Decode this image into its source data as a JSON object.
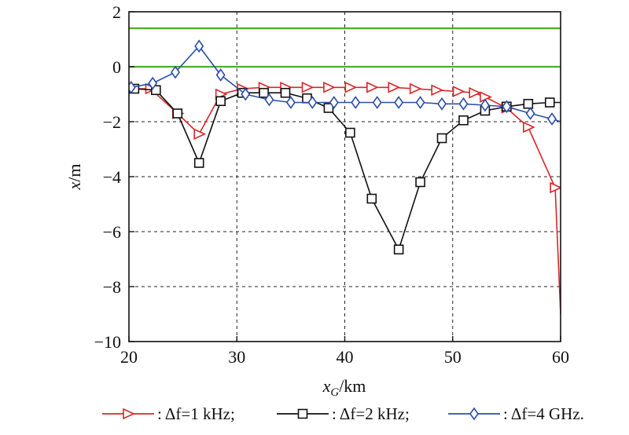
{
  "chart_data": {
    "type": "line",
    "title": "",
    "xlabel_main": "x",
    "xlabel_sub": "G",
    "xlabel_unit": "/km",
    "ylabel_main": "x",
    "ylabel_unit": "/m",
    "xlim": [
      20,
      60
    ],
    "ylim": [
      -10,
      2
    ],
    "xticks": [
      20,
      30,
      40,
      50,
      60
    ],
    "yticks": [
      -10,
      -8,
      -6,
      -4,
      -2,
      0,
      2
    ],
    "ytick_labels": [
      "−10",
      "−8",
      "−6",
      "−4",
      "−2",
      "0",
      "2"
    ],
    "xtick_labels": [
      "20",
      "30",
      "40",
      "50",
      "60"
    ],
    "grid": true,
    "reference_lines": [
      {
        "y": 1.4,
        "color": "#4caf2a"
      },
      {
        "y": 0.0,
        "color": "#4caf2a"
      }
    ],
    "series": [
      {
        "name": ": Δf=1 kHz;",
        "color": "#d9262a",
        "marker": "triangle-right",
        "x": [
          20,
          22,
          24.5,
          26.5,
          28.5,
          30.5,
          32.5,
          34.5,
          36.5,
          38.5,
          40.5,
          42.5,
          44.5,
          46.5,
          48.5,
          50.5,
          52,
          53,
          55,
          57,
          59.5,
          60
        ],
        "y": [
          -0.8,
          -0.8,
          -1.7,
          -2.45,
          -1.0,
          -0.8,
          -0.75,
          -0.75,
          -0.75,
          -0.75,
          -0.75,
          -0.75,
          -0.75,
          -0.8,
          -0.85,
          -0.9,
          -0.95,
          -1.1,
          -1.5,
          -2.2,
          -4.4,
          -9.0
        ],
        "marker_x": [
          20,
          22,
          24.5,
          26.5,
          28.5,
          30.5,
          32.5,
          34.5,
          36.5,
          38.5,
          40.5,
          42.5,
          44.5,
          46.5,
          48.5,
          50.5,
          52,
          53,
          55,
          57,
          59.5
        ]
      },
      {
        "name": ": Δf=2 kHz;",
        "color": "#111111",
        "marker": "square",
        "x": [
          20.5,
          22.5,
          24.5,
          26.5,
          28.5,
          30.5,
          32.5,
          34.5,
          36.5,
          38.5,
          40.5,
          42.5,
          45,
          47,
          49,
          51,
          53,
          55,
          57,
          59,
          60
        ],
        "y": [
          -0.8,
          -0.85,
          -1.7,
          -3.5,
          -1.25,
          -0.95,
          -0.95,
          -0.95,
          -1.15,
          -1.5,
          -2.4,
          -4.8,
          -6.65,
          -4.2,
          -2.6,
          -1.95,
          -1.6,
          -1.45,
          -1.35,
          -1.3,
          -1.3
        ],
        "marker_x": [
          20.5,
          22.5,
          24.5,
          26.5,
          28.5,
          30.5,
          32.5,
          34.5,
          36.5,
          38.5,
          40.5,
          42.5,
          45,
          47,
          49,
          51,
          53,
          55,
          57,
          59
        ]
      },
      {
        "name": ": Δf=4 GHz.",
        "color": "#2b4fa8",
        "marker": "diamond",
        "x": [
          20.2,
          22.2,
          24.3,
          26.5,
          28.5,
          30.8,
          33,
          35,
          37,
          39,
          41,
          43,
          45,
          47,
          49,
          51,
          53,
          55,
          57.2,
          59.2,
          60
        ],
        "y": [
          -0.75,
          -0.6,
          -0.2,
          0.75,
          -0.3,
          -1.0,
          -1.2,
          -1.3,
          -1.3,
          -1.3,
          -1.3,
          -1.3,
          -1.3,
          -1.3,
          -1.35,
          -1.35,
          -1.4,
          -1.45,
          -1.7,
          -1.9,
          -2.0
        ],
        "marker_x": [
          20.2,
          22.2,
          24.3,
          26.5,
          28.5,
          30.8,
          33,
          35,
          37,
          39,
          41,
          43,
          45,
          47,
          49,
          51,
          53,
          55,
          57.2,
          59.2
        ]
      }
    ],
    "legend_position": "bottom"
  }
}
